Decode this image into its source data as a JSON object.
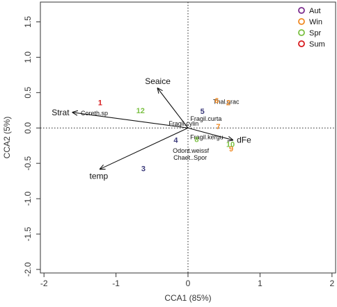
{
  "chart_data": {
    "type": "scatter",
    "title": "",
    "xlabel": "CCA1 (85%)",
    "ylabel": "CCA2 (5%)",
    "xlim": [
      -2.05,
      2.05
    ],
    "ylim": [
      -2.05,
      1.78
    ],
    "xticks": [
      -2,
      -1,
      0,
      1,
      2
    ],
    "yticks": [
      -2.0,
      -1.5,
      -1.0,
      -0.5,
      0.0,
      0.5,
      1.0,
      1.5
    ],
    "reference_lines": {
      "x": 0,
      "y": 0,
      "style": "dotted"
    },
    "legend": {
      "position": "top-right",
      "entries": [
        {
          "label": "Aut",
          "color": "#7b2d8e"
        },
        {
          "label": "Win",
          "color": "#f08a24"
        },
        {
          "label": "Spr",
          "color": "#7bc043"
        },
        {
          "label": "Sum",
          "color": "#d7191c"
        }
      ]
    },
    "env_vectors": [
      {
        "label": "Seaice",
        "x": -0.42,
        "y": 0.56
      },
      {
        "label": "Strat",
        "x": -1.6,
        "y": 0.22
      },
      {
        "label": "temp",
        "x": -1.22,
        "y": -0.58
      },
      {
        "label": "dFe",
        "x": 0.62,
        "y": -0.17
      }
    ],
    "samples": [
      {
        "label": "1",
        "season": "Sum",
        "color": "#d7191c",
        "x": -1.22,
        "y": 0.36
      },
      {
        "label": "2",
        "season": "Win",
        "color": "#f08a24",
        "x": 0.56,
        "y": 0.36
      },
      {
        "label": "3",
        "season": "Aut",
        "color": "#3b3a7a",
        "x": -0.62,
        "y": -0.57
      },
      {
        "label": "4",
        "season": "Aut",
        "color": "#3b3a7a",
        "x": -0.17,
        "y": -0.17
      },
      {
        "label": "5",
        "season": "Aut",
        "color": "#3b3a7a",
        "x": 0.2,
        "y": 0.24
      },
      {
        "label": "6",
        "season": "Win",
        "color": "#f08a24",
        "x": 0.4,
        "y": 0.39
      },
      {
        "label": "7",
        "season": "Win",
        "color": "#f08a24",
        "x": 0.42,
        "y": 0.02
      },
      {
        "label": "8",
        "season": "Spr",
        "color": "#7bc043",
        "x": 0.12,
        "y": -0.16
      },
      {
        "label": "9",
        "season": "Win",
        "color": "#f08a24",
        "x": 0.6,
        "y": -0.29
      },
      {
        "label": "10",
        "season": "Spr",
        "color": "#7bc043",
        "x": 0.59,
        "y": -0.23
      },
      {
        "label": "12",
        "season": "Spr",
        "color": "#7bc043",
        "x": -0.66,
        "y": 0.25
      }
    ],
    "species": [
      {
        "label": "Thal.grac",
        "x": 0.53,
        "y": 0.37
      },
      {
        "label": "Coreth.sp",
        "x": -1.3,
        "y": 0.21
      },
      {
        "label": "Fragil.curta",
        "x": 0.25,
        "y": 0.13
      },
      {
        "label": "Fragil.cylin",
        "x": -0.06,
        "y": 0.06
      },
      {
        "label": "Fragil.kergu",
        "x": 0.26,
        "y": -0.13
      },
      {
        "label": "Odont.weissf",
        "x": 0.04,
        "y": -0.32
      },
      {
        "label": "Chaet..Spor",
        "x": 0.03,
        "y": -0.42
      }
    ]
  }
}
